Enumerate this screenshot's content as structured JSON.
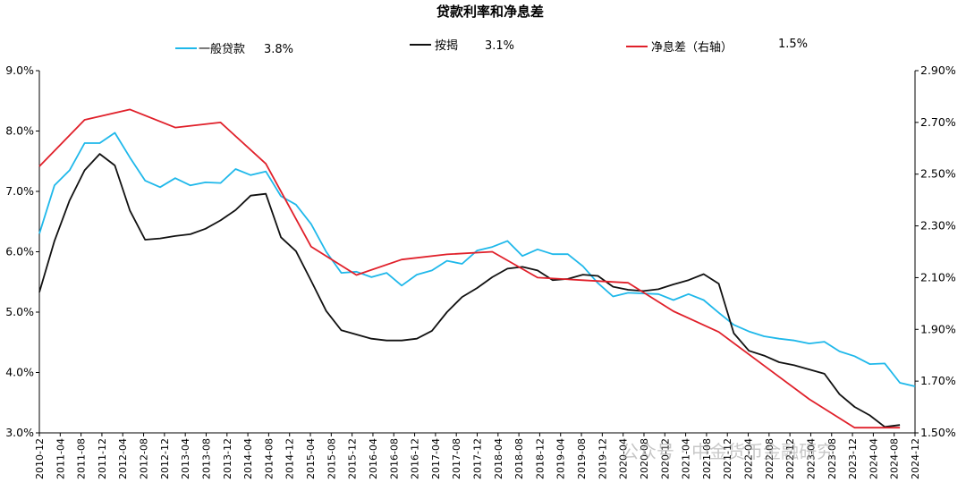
{
  "chart_data": {
    "type": "line",
    "title": "贷款利率和净息差",
    "colors": {
      "general_loan": "#1fb8ea",
      "mortgage": "#111111",
      "nim": "#e0202a",
      "axis": "#000000"
    },
    "legend": [
      {
        "label": "一般贷款",
        "value": "3.8%"
      },
      {
        "label": "按揭",
        "value": "3.1%"
      },
      {
        "label": "净息差（右轴）",
        "value": "1.5%"
      }
    ],
    "legend_placement": "top",
    "grid": false,
    "left_axis": {
      "ylim": [
        3.0,
        9.0
      ],
      "ticks": [
        "3.0%",
        "4.0%",
        "5.0%",
        "6.0%",
        "7.0%",
        "8.0%",
        "9.0%"
      ]
    },
    "right_axis": {
      "ylim": [
        1.5,
        2.9
      ],
      "ticks": [
        "1.50%",
        "1.70%",
        "1.90%",
        "2.10%",
        "2.30%",
        "2.50%",
        "2.70%",
        "2.90%"
      ]
    },
    "x_ticks": [
      "2010-12",
      "2011-04",
      "2011-08",
      "2011-12",
      "2012-04",
      "2012-08",
      "2012-12",
      "2013-04",
      "2013-08",
      "2013-12",
      "2014-04",
      "2014-08",
      "2014-12",
      "2015-04",
      "2015-08",
      "2015-12",
      "2016-04",
      "2016-08",
      "2016-12",
      "2017-04",
      "2017-08",
      "2017-12",
      "2018-04",
      "2018-08",
      "2018-12",
      "2019-04",
      "2019-08",
      "2019-12",
      "2020-04",
      "2020-08",
      "2020-12",
      "2021-04",
      "2021-08",
      "2021-12",
      "2022-04",
      "2022-08",
      "2022-12",
      "2023-04",
      "2023-08",
      "2023-12",
      "2024-04",
      "2024-08",
      "2024-12"
    ],
    "series": [
      {
        "name": "一般贷款",
        "axis": "left",
        "values": [
          6.3,
          7.1,
          7.35,
          7.8,
          7.8,
          7.97,
          7.56,
          7.18,
          7.07,
          7.22,
          7.1,
          7.15,
          7.14,
          7.37,
          7.27,
          7.33,
          6.92,
          6.78,
          6.46,
          6.0,
          5.65,
          5.67,
          5.58,
          5.65,
          5.44,
          5.62,
          5.69,
          5.85,
          5.8,
          6.02,
          6.08,
          6.18,
          5.93,
          6.04,
          5.96,
          5.96,
          5.76,
          5.48,
          5.26,
          5.32,
          5.31,
          5.3,
          5.2,
          5.3,
          5.2,
          4.99,
          4.79,
          4.68,
          4.6,
          4.56,
          4.53,
          4.48,
          4.51,
          4.35,
          4.27,
          4.14,
          4.15,
          3.83,
          3.77
        ]
      },
      {
        "name": "按揭",
        "axis": "left",
        "values": [
          5.33,
          6.18,
          6.85,
          7.35,
          7.62,
          7.43,
          6.68,
          6.2,
          6.22,
          6.26,
          6.29,
          6.38,
          6.52,
          6.69,
          6.93,
          6.96,
          6.24,
          6.01,
          5.52,
          5.02,
          4.7,
          4.63,
          4.56,
          4.53,
          4.53,
          4.56,
          4.69,
          5.0,
          5.25,
          5.4,
          5.58,
          5.72,
          5.75,
          5.69,
          5.53,
          5.55,
          5.62,
          5.6,
          5.42,
          5.37,
          5.35,
          5.38,
          5.46,
          5.53,
          5.63,
          5.47,
          4.65,
          4.36,
          4.28,
          4.17,
          4.12,
          4.05,
          3.98,
          3.64,
          3.43,
          3.29,
          3.1,
          3.13
        ]
      },
      {
        "name": "净息差（右轴）",
        "axis": "right",
        "x_index": [
          0,
          3,
          6,
          9,
          12,
          15,
          18,
          21,
          24,
          27,
          30,
          33,
          36,
          39,
          42,
          45,
          48,
          51,
          54,
          57
        ],
        "values": [
          2.53,
          2.71,
          2.75,
          2.68,
          2.7,
          2.54,
          2.22,
          2.11,
          2.17,
          2.19,
          2.2,
          2.1,
          2.09,
          2.08,
          1.97,
          1.89,
          1.76,
          1.63,
          1.52,
          1.52
        ]
      }
    ],
    "watermark": "公众号 · 中金货币金融研究"
  }
}
